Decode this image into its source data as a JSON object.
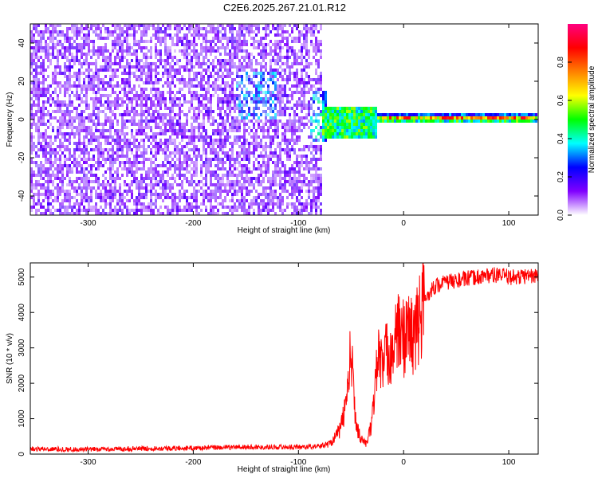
{
  "title": "C2E6.2025.267.21.01.R12",
  "chart_data": [
    {
      "type": "heatmap",
      "xlabel": "Height of straight line (km)",
      "ylabel": "Frequency (Hz)",
      "xlim": [
        -355,
        128
      ],
      "ylim": [
        -50,
        50
      ],
      "x_ticks": [
        -300,
        -200,
        -100,
        0,
        100
      ],
      "y_ticks": [
        -40,
        -20,
        0,
        20,
        40
      ],
      "colorbar": {
        "label": "Normalized spectral amplitude",
        "range": [
          0,
          1
        ],
        "ticks": [
          0.0,
          0.2,
          0.4,
          0.6,
          0.8
        ],
        "colors": [
          "#ffffff",
          "#8000ff",
          "#0000ff",
          "#00ffff",
          "#00ff00",
          "#ffff00",
          "#ff8000",
          "#ff0000",
          "#ff0080"
        ]
      },
      "regions": [
        {
          "x_range": [
            -355,
            -78
          ],
          "freq_range": [
            -50,
            50
          ],
          "amplitude": 0.12,
          "pattern": "broadband noise"
        },
        {
          "x_range": [
            -160,
            -120
          ],
          "freq_range": [
            0,
            25
          ],
          "amplitude": 0.25
        },
        {
          "x_range": [
            -88,
            -72
          ],
          "freq_range": [
            -12,
            15
          ],
          "amplitude": 0.3
        },
        {
          "x_range": [
            -78,
            -25
          ],
          "freq_range": [
            -10,
            7
          ],
          "amplitude": 0.45
        },
        {
          "x_range": [
            -25,
            128
          ],
          "freq_range": [
            -2,
            3
          ],
          "amplitude": 0.8,
          "center_freq": 0.5
        }
      ],
      "grid": false
    },
    {
      "type": "line",
      "xlabel": "Height of straight line (km)",
      "ylabel": "SNR (10 * v/v)",
      "xlim": [
        -355,
        128
      ],
      "ylim": [
        0,
        5400
      ],
      "x_ticks": [
        -300,
        -200,
        -100,
        0,
        100
      ],
      "y_ticks": [
        0,
        1000,
        2000,
        3000,
        4000,
        5000
      ],
      "series": [
        {
          "color": "#ff0000",
          "points": [
            {
              "x": -355,
              "y": 150
            },
            {
              "x": -300,
              "y": 130
            },
            {
              "x": -250,
              "y": 160
            },
            {
              "x": -200,
              "y": 170
            },
            {
              "x": -150,
              "y": 200
            },
            {
              "x": -100,
              "y": 200
            },
            {
              "x": -80,
              "y": 220
            },
            {
              "x": -70,
              "y": 300
            },
            {
              "x": -60,
              "y": 700
            },
            {
              "x": -55,
              "y": 1400
            },
            {
              "x": -52,
              "y": 2200
            },
            {
              "x": -50,
              "y": 3000
            },
            {
              "x": -48,
              "y": 2000
            },
            {
              "x": -45,
              "y": 800
            },
            {
              "x": -40,
              "y": 400
            },
            {
              "x": -35,
              "y": 300
            },
            {
              "x": -30,
              "y": 900
            },
            {
              "x": -27,
              "y": 2000
            },
            {
              "x": -25,
              "y": 2800
            },
            {
              "x": -20,
              "y": 2500
            },
            {
              "x": -15,
              "y": 2900
            },
            {
              "x": -10,
              "y": 3000
            },
            {
              "x": -5,
              "y": 3400
            },
            {
              "x": 0,
              "y": 3300
            },
            {
              "x": 5,
              "y": 3500
            },
            {
              "x": 10,
              "y": 3300
            },
            {
              "x": 15,
              "y": 3800
            },
            {
              "x": 20,
              "y": 4300
            },
            {
              "x": 25,
              "y": 4600
            },
            {
              "x": 30,
              "y": 4750
            },
            {
              "x": 40,
              "y": 4850
            },
            {
              "x": 50,
              "y": 4900
            },
            {
              "x": 60,
              "y": 4950
            },
            {
              "x": 70,
              "y": 5000
            },
            {
              "x": 80,
              "y": 5050
            },
            {
              "x": 90,
              "y": 5050
            },
            {
              "x": 100,
              "y": 5000
            },
            {
              "x": 110,
              "y": 5000
            },
            {
              "x": 120,
              "y": 5050
            },
            {
              "x": 128,
              "y": 5000
            }
          ]
        }
      ],
      "grid": false
    }
  ]
}
